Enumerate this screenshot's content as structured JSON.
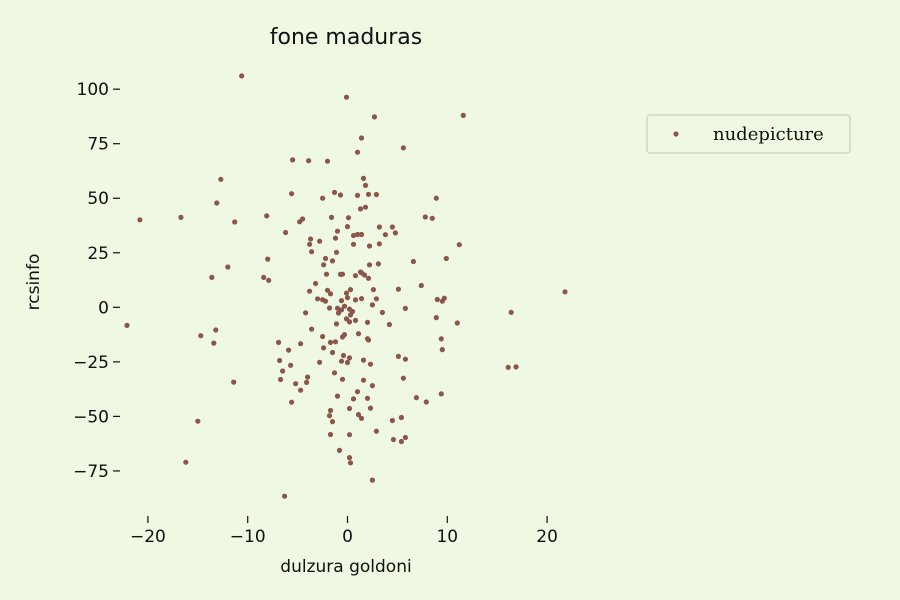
{
  "chart_data": {
    "type": "scatter",
    "title": "fone maduras",
    "xlabel": "dulzura goldoni",
    "ylabel": "rcsinfo",
    "xlim": [
      -23.5,
      23.5
    ],
    "ylim": [
      -92,
      112
    ],
    "xticks": [
      -20,
      -10,
      0,
      10,
      20
    ],
    "xtick_labels": [
      "−20",
      "−10",
      "0",
      "10",
      "20"
    ],
    "yticks": [
      -75,
      -50,
      -25,
      0,
      25,
      50,
      75,
      100
    ],
    "ytick_labels": [
      "−75",
      "−50",
      "−25",
      "0",
      "25",
      "50",
      "75",
      "100"
    ],
    "grid": false,
    "legend_position": "upper right, outside plot",
    "marker_color": "#8c564b",
    "series": [
      {
        "name": "nudepicture",
        "points": [
          [
            -10.6,
            106.1
          ],
          [
            -0.1,
            96.3
          ],
          [
            2.7,
            87.3
          ],
          [
            11.6,
            88.0
          ],
          [
            1.4,
            77.6
          ],
          [
            1.0,
            71.1
          ],
          [
            5.6,
            73.1
          ],
          [
            -5.5,
            67.6
          ],
          [
            -3.9,
            67.2
          ],
          [
            -2.0,
            67.0
          ],
          [
            -12.7,
            58.7
          ],
          [
            1.6,
            59.1
          ],
          [
            1.8,
            55.9
          ],
          [
            2.1,
            51.8
          ],
          [
            2.9,
            51.7
          ],
          [
            1.0,
            51.3
          ],
          [
            -1.3,
            52.7
          ],
          [
            -0.7,
            51.5
          ],
          [
            -5.6,
            52.1
          ],
          [
            -2.5,
            50.0
          ],
          [
            -13.1,
            47.8
          ],
          [
            8.9,
            50.0
          ],
          [
            1.3,
            45.1
          ],
          [
            1.8,
            45.9
          ],
          [
            -20.8,
            40.1
          ],
          [
            -16.7,
            41.2
          ],
          [
            -11.3,
            39.1
          ],
          [
            -8.1,
            41.9
          ],
          [
            -4.5,
            40.5
          ],
          [
            -4.8,
            39.2
          ],
          [
            -1.6,
            41.2
          ],
          [
            0.1,
            41.1
          ],
          [
            7.8,
            41.4
          ],
          [
            8.5,
            40.8
          ],
          [
            -6.2,
            34.3
          ],
          [
            0.0,
            37.0
          ],
          [
            3.2,
            36.8
          ],
          [
            4.5,
            36.8
          ],
          [
            4.8,
            34.1
          ],
          [
            -1.0,
            34.9
          ],
          [
            1.0,
            33.4
          ],
          [
            0.6,
            32.9
          ],
          [
            -3.7,
            31.3
          ],
          [
            -2.8,
            30.3
          ],
          [
            -1.2,
            31.7
          ],
          [
            0.6,
            28.9
          ],
          [
            1.4,
            33.4
          ],
          [
            3.8,
            33.3
          ],
          [
            11.2,
            28.7
          ],
          [
            3.2,
            29.1
          ],
          [
            2.2,
            28.1
          ],
          [
            -3.8,
            28.9
          ],
          [
            -3.6,
            25.5
          ],
          [
            -1.1,
            25.2
          ],
          [
            -8.0,
            22.1
          ],
          [
            -12.0,
            18.5
          ],
          [
            -2.2,
            22.4
          ],
          [
            -1.5,
            21.3
          ],
          [
            -2.4,
            19.5
          ],
          [
            2.2,
            19.5
          ],
          [
            3.1,
            19.9
          ],
          [
            6.6,
            21.0
          ],
          [
            9.9,
            22.4
          ],
          [
            -13.6,
            13.7
          ],
          [
            -8.4,
            13.7
          ],
          [
            -7.9,
            12.4
          ],
          [
            -0.7,
            15.1
          ],
          [
            -0.5,
            15.2
          ],
          [
            0.8,
            14.5
          ],
          [
            1.4,
            15.8
          ],
          [
            1.3,
            16.2
          ],
          [
            1.7,
            14.8
          ],
          [
            2.1,
            13.3
          ],
          [
            -2.1,
            15.2
          ],
          [
            -3.2,
            10.9
          ],
          [
            -3.8,
            7.4
          ],
          [
            -2.0,
            7.8
          ],
          [
            -1.7,
            6.2
          ],
          [
            -0.1,
            6.5
          ],
          [
            0.3,
            8.1
          ],
          [
            2.6,
            8.1
          ],
          [
            5.1,
            8.3
          ],
          [
            7.4,
            10.0
          ],
          [
            21.8,
            7.1
          ],
          [
            -2.5,
            3.5
          ],
          [
            -3.0,
            3.9
          ],
          [
            -2.2,
            2.8
          ],
          [
            -0.6,
            3.1
          ],
          [
            0.0,
            4.4
          ],
          [
            0.8,
            3.4
          ],
          [
            1.4,
            4.0
          ],
          [
            2.9,
            3.9
          ],
          [
            2.5,
            1.1
          ],
          [
            9.7,
            4.2
          ],
          [
            9.5,
            2.8
          ],
          [
            9.0,
            3.6
          ],
          [
            -4.2,
            -2.5
          ],
          [
            -1.0,
            -0.4
          ],
          [
            -0.3,
            0.5
          ],
          [
            -0.6,
            -1.2
          ],
          [
            0.2,
            -0.8
          ],
          [
            0.5,
            -1.9
          ],
          [
            -0.9,
            -2.6
          ],
          [
            -1.8,
            -0.3
          ],
          [
            3.5,
            -2.4
          ],
          [
            5.8,
            -0.5
          ],
          [
            8.9,
            -4.7
          ],
          [
            11.0,
            -7.2
          ],
          [
            16.4,
            -2.3
          ],
          [
            -22.1,
            -8.3
          ],
          [
            -13.2,
            -10.4
          ],
          [
            -14.7,
            -13.0
          ],
          [
            -13.4,
            -16.4
          ],
          [
            -2.5,
            -13.4
          ],
          [
            -3.6,
            -10.0
          ],
          [
            -1.1,
            -7.6
          ],
          [
            0.2,
            -6.7
          ],
          [
            0.8,
            -6.0
          ],
          [
            0.3,
            -3.5
          ],
          [
            -0.1,
            -5.3
          ],
          [
            1.1,
            -12.1
          ],
          [
            2.0,
            -6.9
          ],
          [
            2.0,
            -14.4
          ],
          [
            2.1,
            -15.0
          ],
          [
            4.2,
            -7.9
          ],
          [
            -0.3,
            -12.5
          ],
          [
            -0.5,
            -13.6
          ],
          [
            -1.2,
            -15.8
          ],
          [
            -1.7,
            -16.1
          ],
          [
            -4.7,
            -16.7
          ],
          [
            -6.9,
            -16.1
          ],
          [
            -5.9,
            -19.6
          ],
          [
            -6.8,
            -24.4
          ],
          [
            -2.4,
            -18.6
          ],
          [
            -1.5,
            -20.7
          ],
          [
            -0.4,
            -22.1
          ],
          [
            0.0,
            -25.3
          ],
          [
            -0.6,
            -24.7
          ],
          [
            0.2,
            -23.2
          ],
          [
            1.6,
            -24.2
          ],
          [
            2.3,
            -26.1
          ],
          [
            5.1,
            -22.5
          ],
          [
            5.8,
            -23.8
          ],
          [
            9.5,
            -19.4
          ],
          [
            9.4,
            -14.5
          ],
          [
            16.1,
            -27.5
          ],
          [
            16.9,
            -27.3
          ],
          [
            -2.8,
            -25.2
          ],
          [
            -5.7,
            -26.6
          ],
          [
            -6.5,
            -29.2
          ],
          [
            -6.7,
            -33.1
          ],
          [
            -4.0,
            -32.0
          ],
          [
            -4.1,
            -34.4
          ],
          [
            -1.3,
            -30.0
          ],
          [
            -0.5,
            -33.0
          ],
          [
            1.6,
            -33.4
          ],
          [
            2.5,
            -35.9
          ],
          [
            5.6,
            -32.5
          ],
          [
            -11.4,
            -34.3
          ],
          [
            -5.2,
            -35.0
          ],
          [
            -4.7,
            -38.0
          ],
          [
            -5.6,
            -43.5
          ],
          [
            -1.0,
            -40.7
          ],
          [
            0.6,
            -42.0
          ],
          [
            1.0,
            -38.7
          ],
          [
            2.0,
            -41.7
          ],
          [
            7.9,
            -43.4
          ],
          [
            6.9,
            -41.4
          ],
          [
            9.4,
            -39.7
          ],
          [
            -1.7,
            -47.3
          ],
          [
            -1.8,
            -49.7
          ],
          [
            0.2,
            -46.4
          ],
          [
            1.1,
            -49.2
          ],
          [
            2.3,
            -46.2
          ],
          [
            1.4,
            -50.9
          ],
          [
            -15.0,
            -52.2
          ],
          [
            -1.5,
            -52.4
          ],
          [
            4.5,
            -51.9
          ],
          [
            5.4,
            -50.5
          ],
          [
            -1.7,
            -58.3
          ],
          [
            0.2,
            -58.4
          ],
          [
            2.9,
            -56.8
          ],
          [
            5.8,
            -59.7
          ],
          [
            5.4,
            -61.5
          ],
          [
            4.6,
            -60.6
          ],
          [
            -0.8,
            -65.6
          ],
          [
            0.2,
            -68.9
          ],
          [
            0.3,
            -71.3
          ],
          [
            -16.2,
            -71.0
          ],
          [
            2.5,
            -79.2
          ],
          [
            -6.3,
            -86.6
          ]
        ]
      }
    ]
  }
}
